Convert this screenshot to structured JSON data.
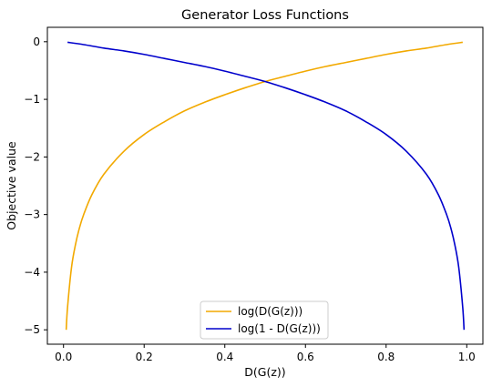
{
  "chart_data": {
    "type": "line",
    "title": "Generator Loss Functions",
    "xlabel": "D(G(z))",
    "ylabel": "Objective value",
    "xlim": [
      -0.04,
      1.04
    ],
    "ylim": [
      -5.25,
      0.25
    ],
    "xticks": [
      0,
      0.2,
      0.4,
      0.6,
      0.8,
      1
    ],
    "xtick_labels": [
      "0.0",
      "0.2",
      "0.4",
      "0.6",
      "0.8",
      "1.0"
    ],
    "yticks": [
      0,
      -1,
      -2,
      -3,
      -4,
      -5
    ],
    "ytick_labels": [
      "0",
      "−1",
      "−2",
      "−3",
      "−4",
      "−5"
    ],
    "grid": false,
    "legend_position": "lower-center",
    "series": [
      {
        "name": "log(D(G(z)))",
        "color": "#F2A900",
        "x": [
          0.0067,
          0.01,
          0.02,
          0.03,
          0.04,
          0.05,
          0.07,
          0.1,
          0.15,
          0.2,
          0.25,
          0.3,
          0.35,
          0.4,
          0.45,
          0.5,
          0.55,
          0.6,
          0.65,
          0.7,
          0.75,
          0.8,
          0.85,
          0.9,
          0.95,
          0.99
        ],
        "y": [
          -5.0,
          -4.61,
          -3.91,
          -3.51,
          -3.22,
          -3.0,
          -2.66,
          -2.3,
          -1.9,
          -1.61,
          -1.39,
          -1.2,
          -1.05,
          -0.92,
          -0.8,
          -0.69,
          -0.6,
          -0.51,
          -0.43,
          -0.36,
          -0.29,
          -0.22,
          -0.16,
          -0.11,
          -0.05,
          -0.01
        ]
      },
      {
        "name": "log(1 - D(G(z)))",
        "color": "#0000CC",
        "x": [
          0.01,
          0.05,
          0.1,
          0.15,
          0.2,
          0.25,
          0.3,
          0.35,
          0.4,
          0.45,
          0.5,
          0.55,
          0.6,
          0.65,
          0.7,
          0.75,
          0.8,
          0.85,
          0.9,
          0.93,
          0.95,
          0.96,
          0.97,
          0.98,
          0.99,
          0.9933
        ],
        "y": [
          -0.01,
          -0.05,
          -0.11,
          -0.16,
          -0.22,
          -0.29,
          -0.36,
          -0.43,
          -0.51,
          -0.6,
          -0.69,
          -0.8,
          -0.92,
          -1.05,
          -1.2,
          -1.39,
          -1.61,
          -1.9,
          -2.3,
          -2.66,
          -3.0,
          -3.22,
          -3.51,
          -3.91,
          -4.61,
          -5.0
        ]
      }
    ]
  }
}
